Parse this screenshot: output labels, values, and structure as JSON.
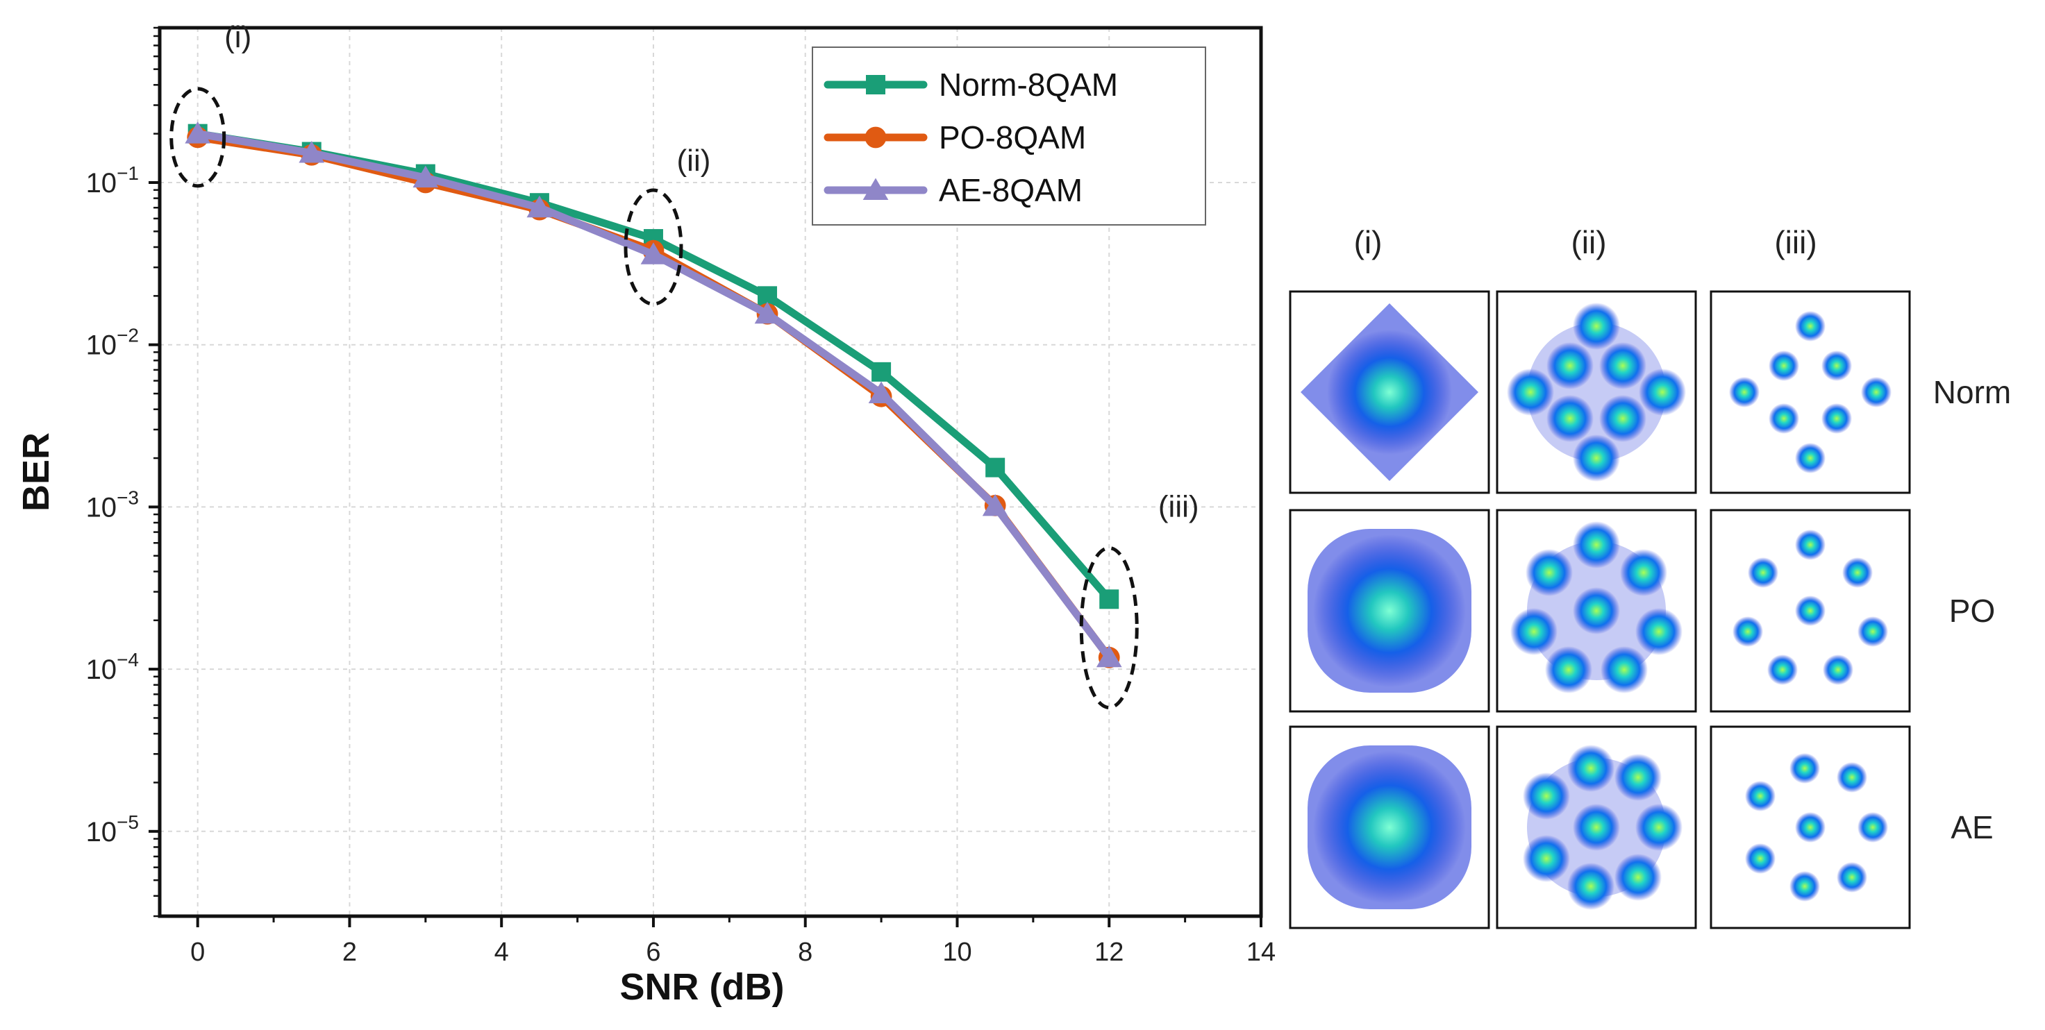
{
  "chart_data": {
    "type": "line",
    "xlabel": "SNR (dB)",
    "ylabel": "BER",
    "x_scale": "linear",
    "y_scale": "log",
    "xlim": [
      -0.5,
      14
    ],
    "ylim": [
      3e-06,
      0.9
    ],
    "xticks": [
      0,
      2,
      4,
      6,
      8,
      10,
      12,
      14
    ],
    "xtick_labels": [
      "0",
      "2",
      "4",
      "6",
      "8",
      "10",
      "12",
      "14"
    ],
    "yticks": [
      1e-05,
      0.0001,
      0.001,
      0.01,
      0.1
    ],
    "ytick_labels": [
      {
        "base": "10",
        "exp": "−5"
      },
      {
        "base": "10",
        "exp": "−4"
      },
      {
        "base": "10",
        "exp": "−3"
      },
      {
        "base": "10",
        "exp": "−2"
      },
      {
        "base": "10",
        "exp": "−1"
      }
    ],
    "grid": true,
    "legend_position": "top-right",
    "x": [
      0,
      1.5,
      3,
      4.5,
      6,
      7.5,
      9,
      10.5,
      12
    ],
    "series": [
      {
        "name": "Norm-8QAM",
        "color": "#1a9e77",
        "marker": "square",
        "values": [
          0.2,
          0.155,
          0.113,
          0.075,
          0.045,
          0.02,
          0.0068,
          0.00175,
          0.00027
        ]
      },
      {
        "name": "PO-8QAM",
        "color": "#e05a12",
        "marker": "circle",
        "values": [
          0.19,
          0.148,
          0.1,
          0.068,
          0.038,
          0.0155,
          0.0048,
          0.00102,
          0.000118
        ]
      },
      {
        "name": "AE-8QAM",
        "color": "#8f86c8",
        "marker": "triangle",
        "values": [
          0.2,
          0.152,
          0.107,
          0.07,
          0.036,
          0.0155,
          0.005,
          0.00101,
          0.000118
        ]
      }
    ],
    "annotations": [
      {
        "label": "(i)",
        "x": 0,
        "y": 0.19
      },
      {
        "label": "(ii)",
        "x": 6,
        "y": 0.04
      },
      {
        "label": "(iii)",
        "x": 12,
        "y": 0.00018
      }
    ]
  },
  "constellations": {
    "column_labels": [
      "(i)",
      "(ii)",
      "(iii)"
    ],
    "row_labels": [
      "Norm",
      "PO",
      "AE"
    ]
  }
}
